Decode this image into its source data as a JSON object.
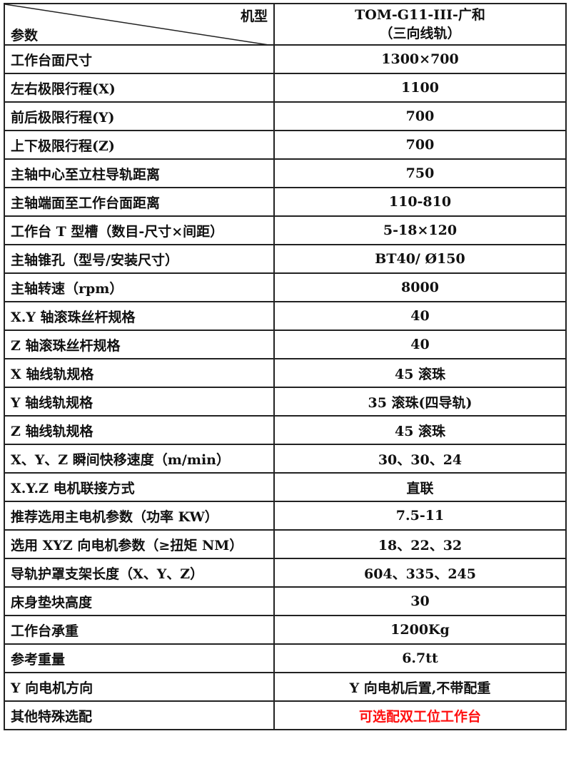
{
  "header": {
    "model_label": "机型",
    "param_label": "参数",
    "model_name": "TOM-G11-III-广和",
    "model_sub": "（三向线轨）"
  },
  "rows": [
    {
      "param": "工作台面尺寸",
      "value": "1300×700"
    },
    {
      "param": "左右极限行程(X)",
      "value": "1100"
    },
    {
      "param": "前后极限行程(Y)",
      "value": "700"
    },
    {
      "param": "上下极限行程(Z)",
      "value": "700"
    },
    {
      "param": "主轴中心至立柱导轨距离",
      "value": "750"
    },
    {
      "param": "主轴端面至工作台面距离",
      "value": "110-810"
    },
    {
      "param": "工作台 T 型槽（数目-尺寸×间距）",
      "value": "5-18×120"
    },
    {
      "param": "主轴锥孔（型号/安装尺寸）",
      "value": "BT40/ Ø150"
    },
    {
      "param": "主轴转速（rpm）",
      "value": "8000"
    },
    {
      "param": "X.Y 轴滚珠丝杆规格",
      "value": "40"
    },
    {
      "param": "Z 轴滚珠丝杆规格",
      "value": "40"
    },
    {
      "param": "X 轴线轨规格",
      "value": "45 滚珠"
    },
    {
      "param": "Y 轴线轨规格",
      "value": "35 滚珠(四导轨)"
    },
    {
      "param": "Z 轴线轨规格",
      "value": "45 滚珠"
    },
    {
      "param": "X、Y、Z 瞬间快移速度（m/min）",
      "value": "30、30、24"
    },
    {
      "param": "X.Y.Z 电机联接方式",
      "value": "直联"
    },
    {
      "param": "推荐选用主电机参数（功率 KW）",
      "value": "7.5-11"
    },
    {
      "param": "选用 XYZ 向电机参数（≥扭矩 NM）",
      "value": "18、22、32"
    },
    {
      "param": "导轨护罩支架长度（X、Y、Z）",
      "value": "604、335、245"
    },
    {
      "param": "床身垫块高度",
      "value": "30"
    },
    {
      "param": "工作台承重",
      "value": "1200Kg"
    },
    {
      "param": "参考重量",
      "value": "6.7tt"
    },
    {
      "param": "Y 向电机方向",
      "value": "Y 向电机后置,不带配重"
    },
    {
      "param": "其他特殊选配",
      "value": "可选配双工位工作台",
      "highlight": "#ff1010"
    }
  ]
}
